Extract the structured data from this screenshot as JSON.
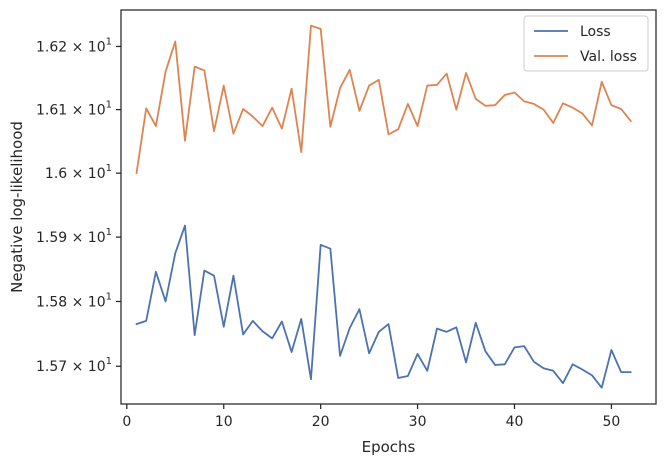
{
  "chart_data": {
    "type": "line",
    "title": "",
    "xlabel": "Epochs",
    "ylabel": "Negative log-likelihood",
    "xlim": [
      -0.6,
      54.6
    ],
    "ylim": [
      15.642,
      16.258
    ],
    "y_scale": "log",
    "x_ticks": [
      0,
      10,
      20,
      30,
      40,
      50
    ],
    "x_tick_labels": [
      "0",
      "10",
      "20",
      "30",
      "40",
      "50"
    ],
    "y_ticks": [
      15.7,
      15.8,
      15.9,
      16.0,
      16.1,
      16.2
    ],
    "y_tick_labels": [
      {
        "mantissa": "1.57",
        "exponent": "1"
      },
      {
        "mantissa": "1.58",
        "exponent": "1"
      },
      {
        "mantissa": "1.59",
        "exponent": "1"
      },
      {
        "mantissa": "1.6",
        "exponent": "1"
      },
      {
        "mantissa": "1.61",
        "exponent": "1"
      },
      {
        "mantissa": "1.62",
        "exponent": "1"
      }
    ],
    "legend_position": "top-right",
    "grid": false,
    "x": [
      1,
      2,
      3,
      4,
      5,
      6,
      7,
      8,
      9,
      10,
      11,
      12,
      13,
      14,
      15,
      16,
      17,
      18,
      19,
      20,
      21,
      22,
      23,
      24,
      25,
      26,
      27,
      28,
      29,
      30,
      31,
      32,
      33,
      34,
      35,
      36,
      37,
      38,
      39,
      40,
      41,
      42,
      43,
      44,
      45,
      46,
      47,
      48,
      49,
      50,
      51,
      52
    ],
    "series": [
      {
        "name": "Loss",
        "color": "#4c72b0",
        "values": [
          15.765,
          15.77,
          15.846,
          15.8,
          15.875,
          15.918,
          15.748,
          15.848,
          15.84,
          15.761,
          15.84,
          15.749,
          15.77,
          15.754,
          15.743,
          15.769,
          15.722,
          15.773,
          15.68,
          15.888,
          15.882,
          15.716,
          15.759,
          15.788,
          15.72,
          15.753,
          15.765,
          15.682,
          15.685,
          15.719,
          15.693,
          15.758,
          15.753,
          15.76,
          15.706,
          15.767,
          15.723,
          15.702,
          15.703,
          15.729,
          15.731,
          15.707,
          15.697,
          15.693,
          15.674,
          15.703,
          15.695,
          15.686,
          15.667,
          15.725,
          15.691,
          15.691
        ]
      },
      {
        "name": "Val. loss",
        "color": "#dd8452",
        "values": [
          16.0,
          16.102,
          16.074,
          16.16,
          16.208,
          16.051,
          16.168,
          16.162,
          16.066,
          16.138,
          16.062,
          16.101,
          16.089,
          16.074,
          16.103,
          16.07,
          16.133,
          16.033,
          16.233,
          16.228,
          16.073,
          16.134,
          16.163,
          16.098,
          16.138,
          16.147,
          16.061,
          16.069,
          16.109,
          16.074,
          16.138,
          16.139,
          16.157,
          16.1,
          16.158,
          16.117,
          16.106,
          16.107,
          16.123,
          16.127,
          16.113,
          16.109,
          16.1,
          16.079,
          16.11,
          16.103,
          16.094,
          16.075,
          16.144,
          16.107,
          16.101,
          16.082
        ]
      }
    ]
  }
}
